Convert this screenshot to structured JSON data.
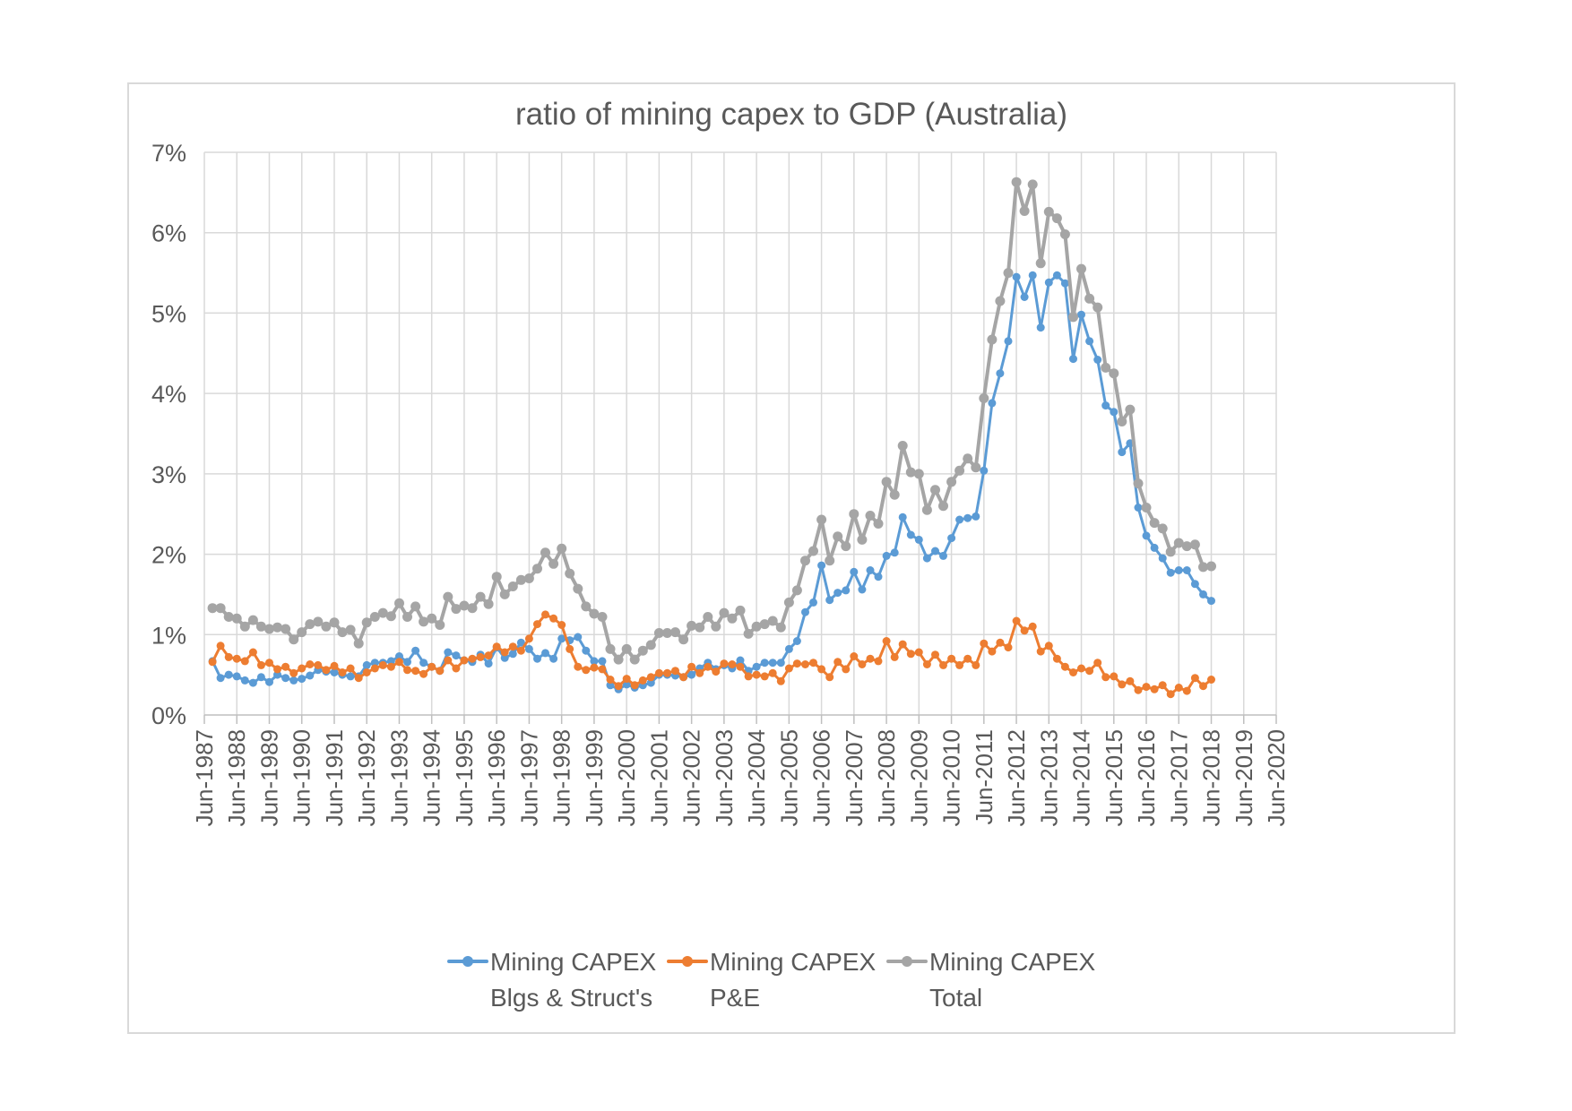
{
  "chart_data": {
    "type": "line",
    "title": "ratio of mining capex to GDP (Australia)",
    "xlabel": "",
    "ylabel": "",
    "x_tick_labels": [
      "Jun-1987",
      "Jun-1988",
      "Jun-1989",
      "Jun-1990",
      "Jun-1991",
      "Jun-1992",
      "Jun-1993",
      "Jun-1994",
      "Jun-1995",
      "Jun-1996",
      "Jun-1997",
      "Jun-1998",
      "Jun-1999",
      "Jun-2000",
      "Jun-2001",
      "Jun-2002",
      "Jun-2003",
      "Jun-2004",
      "Jun-2005",
      "Jun-2006",
      "Jun-2007",
      "Jun-2008",
      "Jun-2009",
      "Jun-2010",
      "Jun-2011",
      "Jun-2012",
      "Jun-2013",
      "Jun-2014",
      "Jun-2015",
      "Jun-2016",
      "Jun-2017",
      "Jun-2018",
      "Jun-2019",
      "Jun-2020"
    ],
    "y_tick_labels": [
      "0%",
      "1%",
      "2%",
      "3%",
      "4%",
      "5%",
      "6%",
      "7%"
    ],
    "xlim": [
      "Jun-1987",
      "Jun-2020"
    ],
    "ylim": [
      0,
      7
    ],
    "y_unit": "%",
    "grid": true,
    "legend_position": "bottom",
    "x": [
      "Sep-1987",
      "Dec-1987",
      "Mar-1988",
      "Jun-1988",
      "Sep-1988",
      "Dec-1988",
      "Mar-1989",
      "Jun-1989",
      "Sep-1989",
      "Dec-1989",
      "Mar-1990",
      "Jun-1990",
      "Sep-1990",
      "Dec-1990",
      "Mar-1991",
      "Jun-1991",
      "Sep-1991",
      "Dec-1991",
      "Mar-1992",
      "Jun-1992",
      "Sep-1992",
      "Dec-1992",
      "Mar-1993",
      "Jun-1993",
      "Sep-1993",
      "Dec-1993",
      "Mar-1994",
      "Jun-1994",
      "Sep-1994",
      "Dec-1994",
      "Mar-1995",
      "Jun-1995",
      "Sep-1995",
      "Dec-1995",
      "Mar-1996",
      "Jun-1996",
      "Sep-1996",
      "Dec-1996",
      "Mar-1997",
      "Jun-1997",
      "Sep-1997",
      "Dec-1997",
      "Mar-1998",
      "Jun-1998",
      "Sep-1998",
      "Dec-1998",
      "Mar-1999",
      "Jun-1999",
      "Sep-1999",
      "Dec-1999",
      "Mar-2000",
      "Jun-2000",
      "Sep-2000",
      "Dec-2000",
      "Mar-2001",
      "Jun-2001",
      "Sep-2001",
      "Dec-2001",
      "Mar-2002",
      "Jun-2002",
      "Sep-2002",
      "Dec-2002",
      "Mar-2003",
      "Jun-2003",
      "Sep-2003",
      "Dec-2003",
      "Mar-2004",
      "Jun-2004",
      "Sep-2004",
      "Dec-2004",
      "Mar-2005",
      "Jun-2005",
      "Sep-2005",
      "Dec-2005",
      "Mar-2006",
      "Jun-2006",
      "Sep-2006",
      "Dec-2006",
      "Mar-2007",
      "Jun-2007",
      "Sep-2007",
      "Dec-2007",
      "Mar-2008",
      "Jun-2008",
      "Sep-2008",
      "Dec-2008",
      "Mar-2009",
      "Jun-2009",
      "Sep-2009",
      "Dec-2009",
      "Mar-2010",
      "Jun-2010",
      "Sep-2010",
      "Dec-2010",
      "Mar-2011",
      "Jun-2011",
      "Sep-2011",
      "Dec-2011",
      "Mar-2012",
      "Jun-2012",
      "Sep-2012",
      "Dec-2012",
      "Mar-2013",
      "Jun-2013",
      "Sep-2013",
      "Dec-2013",
      "Mar-2014",
      "Jun-2014",
      "Sep-2014",
      "Dec-2014",
      "Mar-2015",
      "Jun-2015",
      "Sep-2015",
      "Dec-2015",
      "Mar-2016",
      "Jun-2016",
      "Sep-2016",
      "Dec-2016",
      "Mar-2017",
      "Jun-2017",
      "Sep-2017",
      "Dec-2017",
      "Mar-2018",
      "Jun-2018"
    ],
    "series": [
      {
        "name": "Mining CAPEX Blgs & Struct's",
        "color": "#5b9bd5",
        "values": [
          0.67,
          0.46,
          0.5,
          0.48,
          0.43,
          0.4,
          0.47,
          0.41,
          0.5,
          0.46,
          0.43,
          0.45,
          0.49,
          0.56,
          0.54,
          0.53,
          0.5,
          0.48,
          0.48,
          0.62,
          0.65,
          0.65,
          0.67,
          0.73,
          0.66,
          0.8,
          0.65,
          0.6,
          0.55,
          0.78,
          0.74,
          0.68,
          0.66,
          0.75,
          0.64,
          0.84,
          0.71,
          0.76,
          0.9,
          0.82,
          0.7,
          0.77,
          0.7,
          0.95,
          0.93,
          0.97,
          0.8,
          0.67,
          0.67,
          0.37,
          0.32,
          0.38,
          0.34,
          0.37,
          0.4,
          0.5,
          0.5,
          0.49,
          0.47,
          0.5,
          0.58,
          0.65,
          0.57,
          0.62,
          0.58,
          0.68,
          0.55,
          0.6,
          0.65,
          0.65,
          0.65,
          0.82,
          0.92,
          1.28,
          1.4,
          1.86,
          1.43,
          1.52,
          1.55,
          1.78,
          1.56,
          1.8,
          1.72,
          1.98,
          2.02,
          2.46,
          2.24,
          2.18,
          1.95,
          2.04,
          1.98,
          2.2,
          2.43,
          2.45,
          2.47,
          3.04,
          3.88,
          4.25,
          4.65,
          5.45,
          5.2,
          5.47,
          4.82,
          5.38,
          5.47,
          5.37,
          4.43,
          4.98,
          4.65,
          4.42,
          3.85,
          3.77,
          3.27,
          3.38,
          2.58,
          2.23,
          2.08,
          1.95,
          1.77,
          1.8,
          1.8,
          1.63,
          1.5,
          1.42
        ]
      },
      {
        "name": "Mining CAPEX P&E",
        "color": "#ed7d31",
        "values": [
          0.66,
          0.86,
          0.72,
          0.7,
          0.67,
          0.78,
          0.62,
          0.65,
          0.57,
          0.6,
          0.52,
          0.58,
          0.63,
          0.62,
          0.56,
          0.61,
          0.53,
          0.58,
          0.46,
          0.53,
          0.58,
          0.62,
          0.6,
          0.66,
          0.56,
          0.55,
          0.51,
          0.6,
          0.55,
          0.68,
          0.58,
          0.68,
          0.7,
          0.72,
          0.74,
          0.85,
          0.78,
          0.85,
          0.8,
          0.95,
          1.13,
          1.25,
          1.2,
          1.12,
          0.82,
          0.6,
          0.56,
          0.59,
          0.57,
          0.44,
          0.36,
          0.45,
          0.37,
          0.43,
          0.47,
          0.52,
          0.52,
          0.55,
          0.47,
          0.6,
          0.52,
          0.6,
          0.54,
          0.64,
          0.63,
          0.6,
          0.48,
          0.5,
          0.48,
          0.52,
          0.42,
          0.58,
          0.64,
          0.63,
          0.65,
          0.57,
          0.47,
          0.66,
          0.57,
          0.73,
          0.63,
          0.7,
          0.67,
          0.92,
          0.72,
          0.88,
          0.76,
          0.78,
          0.63,
          0.75,
          0.62,
          0.7,
          0.62,
          0.7,
          0.62,
          0.89,
          0.79,
          0.9,
          0.84,
          1.17,
          1.05,
          1.1,
          0.79,
          0.86,
          0.7,
          0.6,
          0.53,
          0.58,
          0.55,
          0.65,
          0.47,
          0.48,
          0.38,
          0.42,
          0.31,
          0.35,
          0.32,
          0.37,
          0.26,
          0.34,
          0.3,
          0.46,
          0.36,
          0.44
        ]
      },
      {
        "name": "Mining CAPEX Total",
        "color": "#a5a5a5",
        "values": [
          1.33,
          1.33,
          1.22,
          1.2,
          1.1,
          1.18,
          1.1,
          1.07,
          1.09,
          1.07,
          0.94,
          1.03,
          1.13,
          1.16,
          1.1,
          1.15,
          1.03,
          1.06,
          0.89,
          1.15,
          1.22,
          1.27,
          1.23,
          1.39,
          1.22,
          1.35,
          1.16,
          1.2,
          1.12,
          1.47,
          1.32,
          1.36,
          1.33,
          1.47,
          1.38,
          1.72,
          1.5,
          1.6,
          1.68,
          1.7,
          1.82,
          2.02,
          1.88,
          2.07,
          1.76,
          1.57,
          1.35,
          1.26,
          1.22,
          0.82,
          0.69,
          0.82,
          0.69,
          0.8,
          0.87,
          1.02,
          1.02,
          1.03,
          0.94,
          1.11,
          1.09,
          1.22,
          1.1,
          1.27,
          1.2,
          1.3,
          1.01,
          1.1,
          1.13,
          1.17,
          1.09,
          1.4,
          1.55,
          1.92,
          2.04,
          2.43,
          1.92,
          2.22,
          2.1,
          2.5,
          2.18,
          2.48,
          2.38,
          2.9,
          2.74,
          3.35,
          3.02,
          3.0,
          2.55,
          2.8,
          2.6,
          2.9,
          3.04,
          3.19,
          3.08,
          3.94,
          4.67,
          5.15,
          5.5,
          6.63,
          6.27,
          6.6,
          5.62,
          6.26,
          6.18,
          5.98,
          4.95,
          5.55,
          5.18,
          5.07,
          4.32,
          4.25,
          3.65,
          3.8,
          2.88,
          2.58,
          2.39,
          2.32,
          2.03,
          2.14,
          2.1,
          2.12,
          1.84,
          1.85
        ]
      }
    ]
  },
  "legend": [
    {
      "line1": "Mining CAPEX",
      "line2": "Blgs & Struct's"
    },
    {
      "line1": "Mining CAPEX",
      "line2": "P&E"
    },
    {
      "line1": "Mining CAPEX",
      "line2": "Total"
    }
  ]
}
